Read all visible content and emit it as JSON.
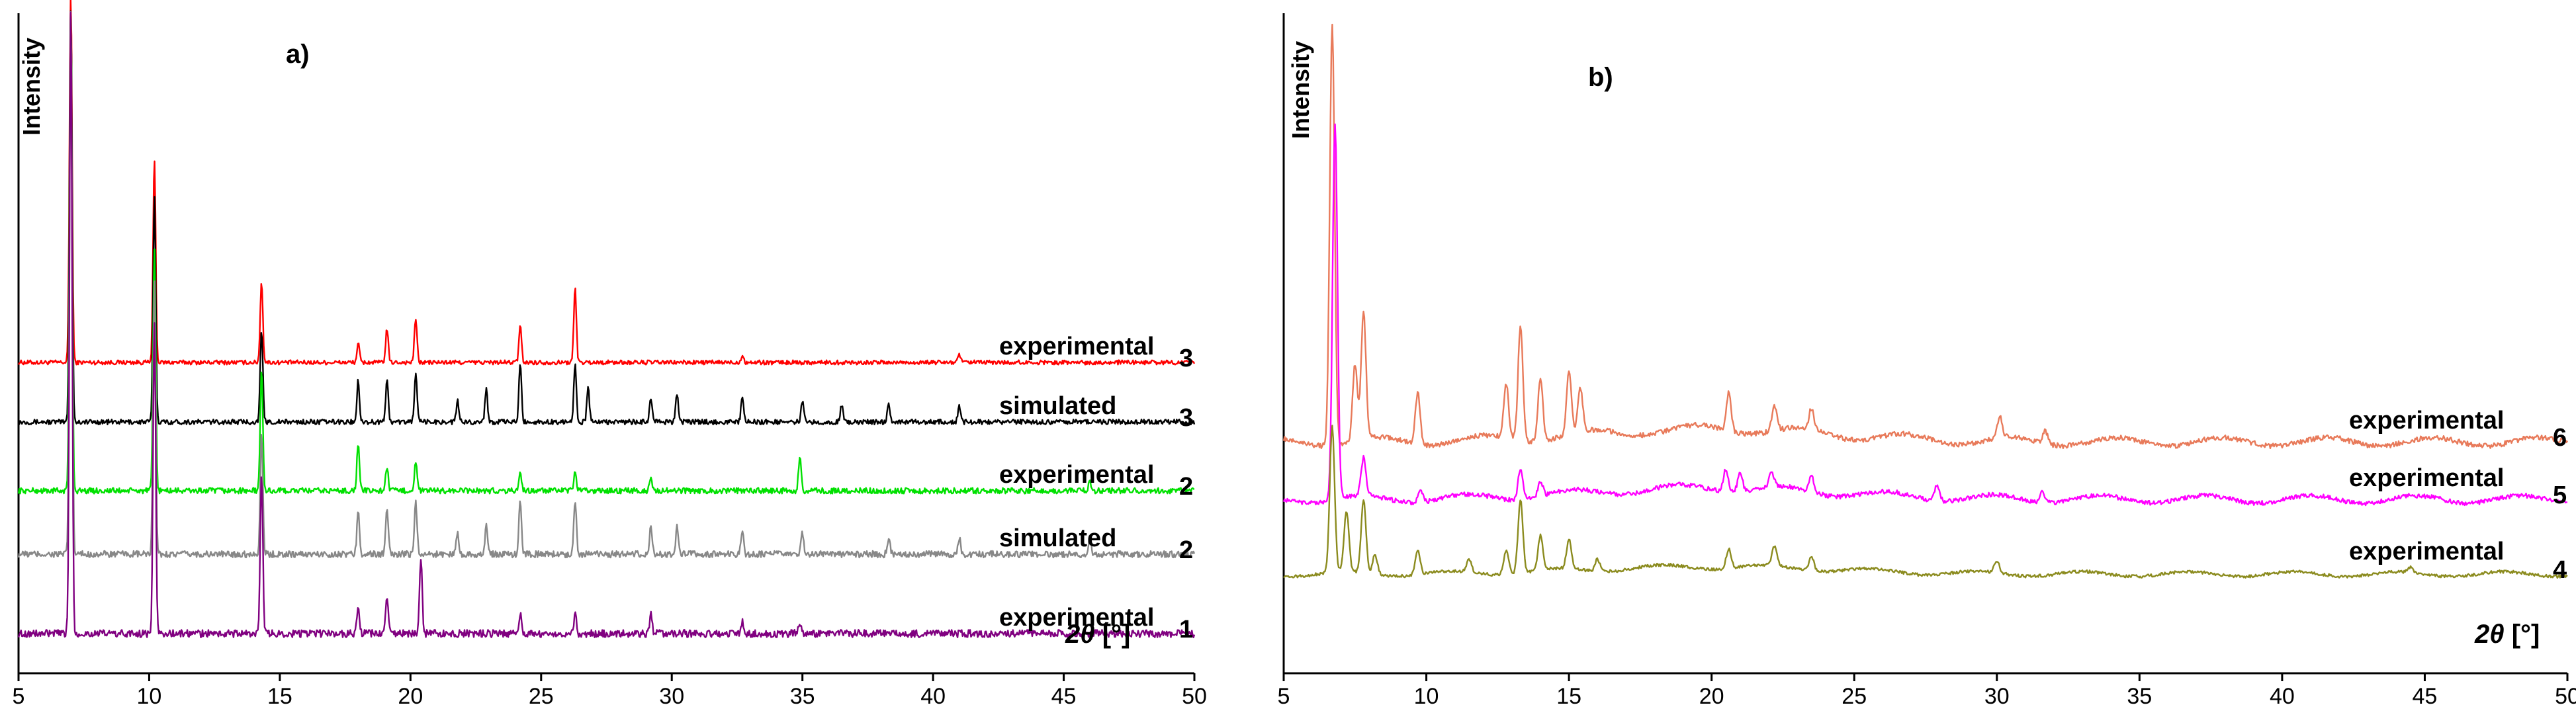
{
  "chart_data": [
    {
      "panel": "a)",
      "type": "line",
      "ylabel": "Intensity",
      "xlabel": "2θ [°]",
      "xlabel_parts": {
        "var": "2θ",
        "unit": "[°]"
      },
      "xlim": [
        5,
        50
      ],
      "xticks": [
        5,
        10,
        15,
        20,
        25,
        30,
        35,
        40,
        45,
        50
      ],
      "series": [
        {
          "name": "experimental",
          "id": "3",
          "color": "#ff0000",
          "peaks": [
            [
              7.0,
              1.0
            ],
            [
              10.2,
              0.55
            ],
            [
              14.3,
              0.22
            ],
            [
              18.0,
              0.05
            ],
            [
              19.1,
              0.09
            ],
            [
              20.2,
              0.12
            ],
            [
              24.2,
              0.1
            ],
            [
              26.3,
              0.2
            ],
            [
              32.7,
              0.02
            ],
            [
              41.0,
              0.02
            ]
          ]
        },
        {
          "name": "simulated",
          "id": "3",
          "color": "#000000",
          "peaks": [
            [
              7.0,
              1.0
            ],
            [
              10.2,
              0.55
            ],
            [
              14.3,
              0.22
            ],
            [
              18.0,
              0.1
            ],
            [
              19.1,
              0.1
            ],
            [
              20.2,
              0.12
            ],
            [
              21.8,
              0.05
            ],
            [
              22.9,
              0.08
            ],
            [
              24.2,
              0.14
            ],
            [
              26.3,
              0.14
            ],
            [
              26.8,
              0.08
            ],
            [
              29.2,
              0.06
            ],
            [
              30.2,
              0.07
            ],
            [
              32.7,
              0.06
            ],
            [
              35.0,
              0.05
            ],
            [
              36.5,
              0.04
            ],
            [
              38.3,
              0.04
            ],
            [
              41.0,
              0.04
            ]
          ]
        },
        {
          "name": "experimental",
          "id": "2",
          "color": "#00e000",
          "peaks": [
            [
              7.0,
              1.0
            ],
            [
              10.2,
              0.5
            ],
            [
              14.3,
              0.25
            ],
            [
              18.0,
              0.1
            ],
            [
              19.1,
              0.05
            ],
            [
              20.2,
              0.06
            ],
            [
              24.2,
              0.04
            ],
            [
              26.3,
              0.04
            ],
            [
              29.2,
              0.03
            ],
            [
              34.9,
              0.07
            ],
            [
              46.0,
              0.02
            ]
          ]
        },
        {
          "name": "simulated",
          "id": "2",
          "color": "#888888",
          "peaks": [
            [
              7.0,
              1.0
            ],
            [
              10.2,
              0.5
            ],
            [
              14.3,
              0.22
            ],
            [
              18.0,
              0.08
            ],
            [
              19.1,
              0.08
            ],
            [
              20.2,
              0.1
            ],
            [
              21.8,
              0.04
            ],
            [
              22.9,
              0.05
            ],
            [
              24.2,
              0.1
            ],
            [
              26.3,
              0.1
            ],
            [
              29.2,
              0.05
            ],
            [
              30.2,
              0.05
            ],
            [
              32.7,
              0.04
            ],
            [
              35.0,
              0.04
            ],
            [
              38.3,
              0.03
            ],
            [
              41.0,
              0.03
            ],
            [
              46.0,
              0.03
            ]
          ]
        },
        {
          "name": "experimental",
          "id": "1",
          "color": "#800080",
          "peaks": [
            [
              7.0,
              1.0
            ],
            [
              10.2,
              0.5
            ],
            [
              14.3,
              0.25
            ],
            [
              18.0,
              0.04
            ],
            [
              19.1,
              0.06
            ],
            [
              20.4,
              0.12
            ],
            [
              24.2,
              0.03
            ],
            [
              26.3,
              0.03
            ],
            [
              29.2,
              0.03
            ],
            [
              32.7,
              0.02
            ],
            [
              34.9,
              0.02
            ]
          ]
        }
      ]
    },
    {
      "panel": "b)",
      "type": "line",
      "ylabel": "Intensity",
      "xlabel": "2θ [°]",
      "xlabel_parts": {
        "var": "2θ",
        "unit": "[°]"
      },
      "xlim": [
        5,
        50
      ],
      "xticks": [
        5,
        10,
        15,
        20,
        25,
        30,
        35,
        40,
        45,
        50
      ],
      "series": [
        {
          "name": "experimental",
          "id": "6",
          "color": "#e87a5a",
          "peaks": [
            [
              6.7,
              1.0
            ],
            [
              7.5,
              0.18
            ],
            [
              7.8,
              0.3
            ],
            [
              9.7,
              0.12
            ],
            [
              12.8,
              0.13
            ],
            [
              13.3,
              0.27
            ],
            [
              14.0,
              0.15
            ],
            [
              15.0,
              0.15
            ],
            [
              15.4,
              0.1
            ],
            [
              20.6,
              0.09
            ],
            [
              22.2,
              0.06
            ],
            [
              23.5,
              0.05
            ],
            [
              30.1,
              0.05
            ],
            [
              31.7,
              0.03
            ]
          ]
        },
        {
          "name": "experimental",
          "id": "5",
          "color": "#ff00ff",
          "peaks": [
            [
              6.8,
              1.0
            ],
            [
              7.8,
              0.1
            ],
            [
              9.8,
              0.03
            ],
            [
              13.3,
              0.08
            ],
            [
              14.0,
              0.04
            ],
            [
              20.5,
              0.06
            ],
            [
              21.0,
              0.05
            ],
            [
              22.1,
              0.04
            ],
            [
              23.5,
              0.04
            ],
            [
              27.9,
              0.04
            ],
            [
              31.6,
              0.03
            ]
          ]
        },
        {
          "name": "experimental",
          "id": "4",
          "color": "#8b8b1e",
          "peaks": [
            [
              6.7,
              0.6
            ],
            [
              7.2,
              0.25
            ],
            [
              7.8,
              0.3
            ],
            [
              8.2,
              0.08
            ],
            [
              9.7,
              0.1
            ],
            [
              11.5,
              0.05
            ],
            [
              12.8,
              0.1
            ],
            [
              13.3,
              0.3
            ],
            [
              14.0,
              0.14
            ],
            [
              15.0,
              0.12
            ],
            [
              16.0,
              0.05
            ],
            [
              20.6,
              0.08
            ],
            [
              22.2,
              0.08
            ],
            [
              23.5,
              0.06
            ],
            [
              30.0,
              0.05
            ],
            [
              44.5,
              0.02
            ]
          ]
        }
      ]
    }
  ],
  "colors": {
    "axis": "#000000"
  }
}
